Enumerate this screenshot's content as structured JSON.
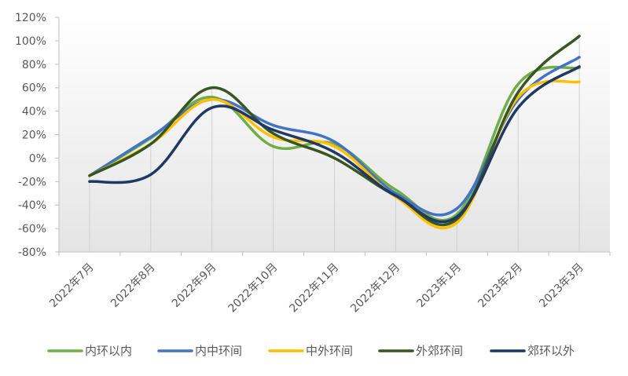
{
  "chart_data": {
    "type": "line",
    "categories": [
      "2022年7月",
      "2022年8月",
      "2022年9月",
      "2022年10月",
      "2022年11月",
      "2022年12月",
      "2023年1月",
      "2023年2月",
      "2023年3月"
    ],
    "ylim": [
      -80,
      120
    ],
    "yticks": [
      -80,
      -60,
      -40,
      -20,
      0,
      20,
      40,
      60,
      80,
      100,
      120
    ],
    "ytick_labels": [
      "-80%",
      "-60%",
      "-40%",
      "-20%",
      "0%",
      "20%",
      "40%",
      "60%",
      "80%",
      "100%",
      "120%"
    ],
    "grid": "vertical lines at categories",
    "legend_position": "bottom",
    "series": [
      {
        "name": "内环以内",
        "color": "#70AD47",
        "values": [
          -15,
          17,
          52,
          10,
          12,
          -27,
          -48,
          63,
          77
        ]
      },
      {
        "name": "内中环间",
        "color": "#4472C4",
        "values": [
          -15,
          18,
          50,
          28,
          14,
          -30,
          -43,
          50,
          86
        ]
      },
      {
        "name": "中外环间",
        "color": "#FFC000",
        "values": [
          -15,
          12,
          50,
          18,
          10,
          -33,
          -55,
          52,
          65
        ]
      },
      {
        "name": "外郊环间",
        "color": "#375623",
        "values": [
          -15,
          12,
          60,
          21,
          0,
          -32,
          -52,
          56,
          104
        ]
      },
      {
        "name": "郊环以外",
        "color": "#203864",
        "values": [
          -20,
          -14,
          43,
          24,
          5,
          -32,
          -50,
          43,
          78
        ]
      }
    ]
  }
}
